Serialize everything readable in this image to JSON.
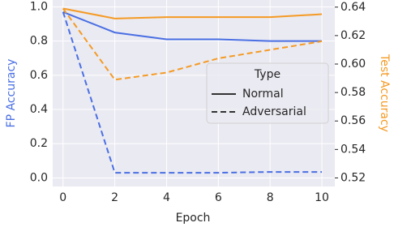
{
  "chart_data": {
    "type": "line",
    "x": [
      0,
      2,
      4,
      6,
      8,
      10
    ],
    "xlabel": "Epoch",
    "ylabel": "FP Accuracy",
    "y2label": "Test Accuracy",
    "xlim": [
      -0.4,
      10.5
    ],
    "xticks": [
      0,
      2,
      4,
      6,
      8,
      10
    ],
    "ylim": [
      -0.05,
      1.04
    ],
    "yticks": [
      {
        "value": 0,
        "label": "0.0"
      },
      0.2,
      0.4,
      0.6,
      0.8,
      {
        "value": 1,
        "label": "1.0"
      }
    ],
    "y2lim": [
      0.514,
      0.645
    ],
    "y2ticks": [
      0.52,
      0.54,
      0.56,
      0.58,
      {
        "value": 0.6,
        "label": "0.60"
      },
      0.62,
      0.64
    ],
    "ylabel_color": "#4a6fe3",
    "y2label_color": "#f59a23",
    "grid": true,
    "legend": "center right",
    "legend_title": "Type",
    "series": [
      {
        "name": "Normal",
        "color": "#4a6fe3",
        "dash": "solid",
        "axis": "y",
        "values": [
          0.97,
          0.85,
          0.81,
          0.81,
          0.8,
          0.8
        ]
      },
      {
        "name": "Adversarial",
        "color": "#4a6fe3",
        "dash": "dashed",
        "axis": "y",
        "values": [
          0.97,
          0.03,
          0.03,
          0.03,
          0.035,
          0.035
        ]
      },
      {
        "name": "Normal",
        "color": "#f59a23",
        "dash": "solid",
        "axis": "y2",
        "values": [
          0.639,
          0.632,
          0.633,
          0.633,
          0.633,
          0.635
        ]
      },
      {
        "name": "Adversarial",
        "color": "#f59a23",
        "dash": "dashed",
        "axis": "y2",
        "values": [
          0.639,
          0.589,
          0.594,
          0.604,
          0.61,
          0.616
        ]
      }
    ]
  }
}
